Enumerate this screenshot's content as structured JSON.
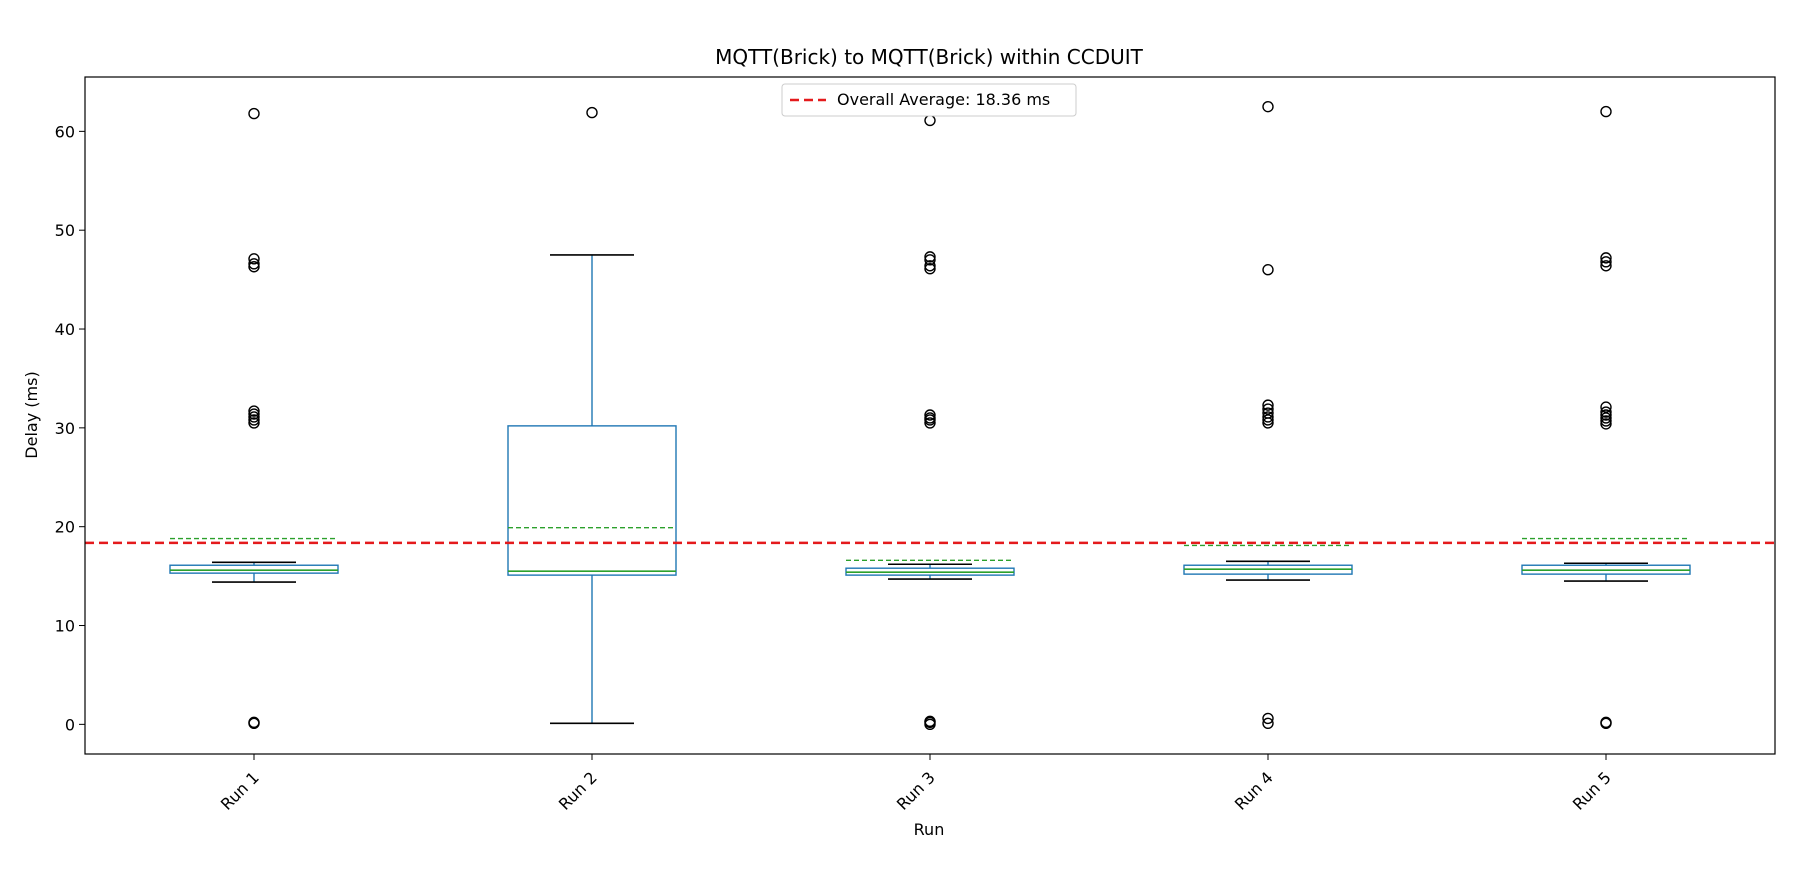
{
  "chart_data": {
    "type": "box",
    "title": "MQTT(Brick) to MQTT(Brick) within CCDUIT",
    "xlabel": "Run",
    "ylabel": "Delay (ms)",
    "ylim": [
      -3,
      65.5
    ],
    "yticks": [
      0,
      10,
      20,
      30,
      40,
      50,
      60
    ],
    "grid": false,
    "legend": {
      "placement": "top-center",
      "label": "Overall Average: 18.36 ms"
    },
    "overall_average": 18.36,
    "colors": {
      "box": "#1f77b4",
      "median": "#2ca02c",
      "mean_line": "#2ca02c",
      "whisker_cap": "#000000",
      "overall_average": "#e41a1c"
    },
    "categories": [
      "Run 1",
      "Run 2",
      "Run 3",
      "Run 4",
      "Run 5"
    ],
    "boxes": [
      {
        "label": "Run 1",
        "whisker_low": 14.4,
        "q1": 15.3,
        "median": 15.6,
        "q3": 16.1,
        "whisker_high": 16.4,
        "mean": 18.8,
        "outliers": [
          61.8,
          47.1,
          46.6,
          46.3,
          31.7,
          31.4,
          31.1,
          30.8,
          30.5,
          0.1,
          0.2
        ]
      },
      {
        "label": "Run 2",
        "whisker_low": 0.1,
        "q1": 15.1,
        "median": 15.5,
        "q3": 30.2,
        "whisker_high": 47.5,
        "mean": 19.9,
        "outliers": [
          61.9
        ]
      },
      {
        "label": "Run 3",
        "whisker_low": 14.7,
        "q1": 15.1,
        "median": 15.4,
        "q3": 15.8,
        "whisker_high": 16.2,
        "mean": 16.6,
        "outliers": [
          61.1,
          47.3,
          47.0,
          46.4,
          46.1,
          31.3,
          31.0,
          30.8,
          30.5,
          0.0,
          0.2,
          0.3
        ]
      },
      {
        "label": "Run 4",
        "whisker_low": 14.6,
        "q1": 15.2,
        "median": 15.7,
        "q3": 16.1,
        "whisker_high": 16.5,
        "mean": 18.1,
        "outliers": [
          62.5,
          46.0,
          32.3,
          31.9,
          31.5,
          31.1,
          30.8,
          30.5,
          0.1,
          0.6
        ]
      },
      {
        "label": "Run 5",
        "whisker_low": 14.5,
        "q1": 15.2,
        "median": 15.6,
        "q3": 16.1,
        "whisker_high": 16.3,
        "mean": 18.8,
        "outliers": [
          62.0,
          47.2,
          46.8,
          46.4,
          32.1,
          31.6,
          31.3,
          31.0,
          30.7,
          30.4,
          0.1,
          0.2
        ]
      }
    ]
  }
}
